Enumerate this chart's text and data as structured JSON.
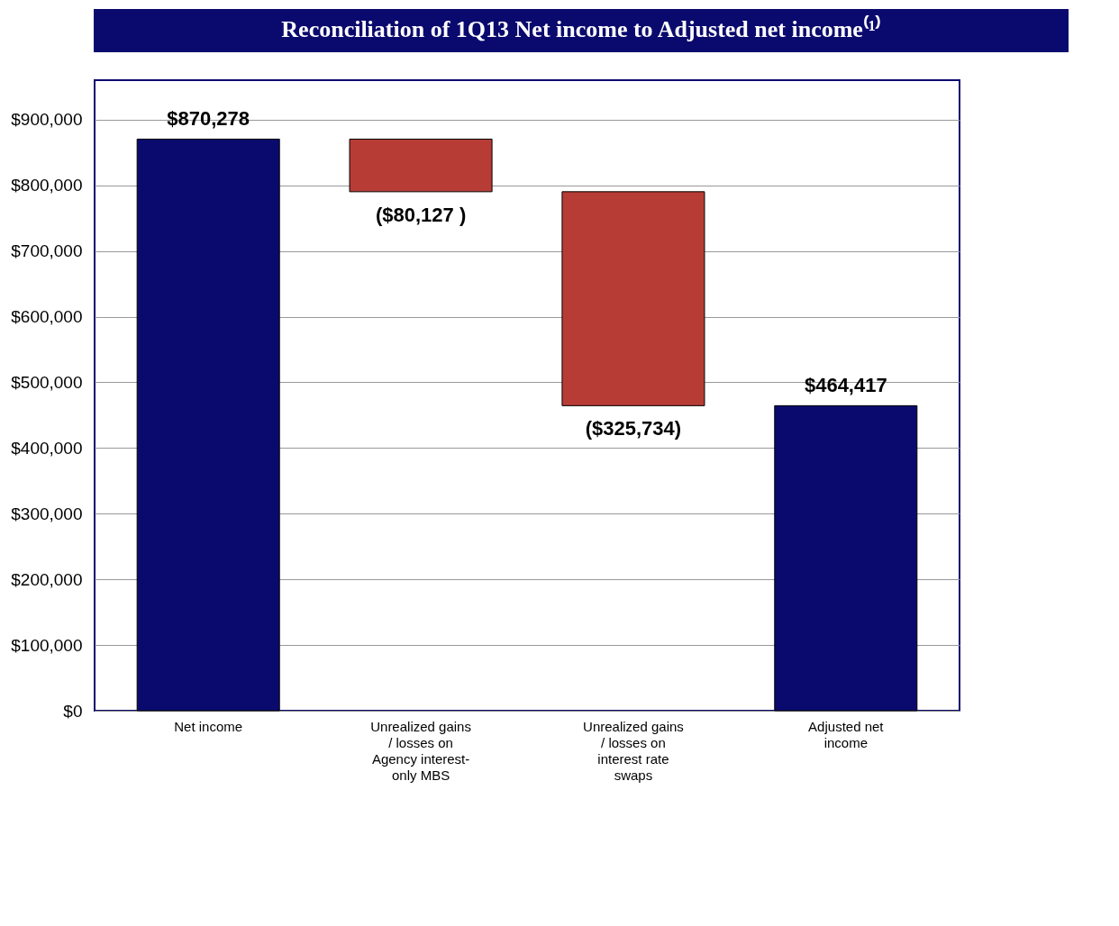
{
  "chart_data": {
    "type": "bar",
    "title": "Reconciliation of 1Q13 Net income to Adjusted net income⁽¹⁾",
    "categories": [
      "Net income",
      "Unrealized gains / losses on Agency interest-only MBS",
      "Unrealized gains / losses on interest rate swaps",
      "Adjusted net income"
    ],
    "values": [
      870278,
      -80127,
      -325734,
      464417
    ],
    "base": [
      0,
      870278,
      790151,
      0
    ],
    "colors": [
      "#0a0a6e",
      "#b83c36",
      "#b83c36",
      "#0a0a6e"
    ],
    "value_labels": [
      "$870,278",
      "($80,127 )",
      "($325,734)",
      "$464,417"
    ],
    "ylim": [
      0,
      960000
    ],
    "yticks": [
      {
        "value": 0,
        "label": "$0"
      },
      {
        "value": 100000,
        "label": "$100,000"
      },
      {
        "value": 200000,
        "label": "$200,000"
      },
      {
        "value": 300000,
        "label": "$300,000"
      },
      {
        "value": 400000,
        "label": "$400,000"
      },
      {
        "value": 500000,
        "label": "$500,000"
      },
      {
        "value": 600000,
        "label": "$600,000"
      },
      {
        "value": 700000,
        "label": "$700,000"
      },
      {
        "value": 800000,
        "label": "$800,000"
      },
      {
        "value": 900000,
        "label": "$900,000"
      }
    ],
    "grid": "y"
  }
}
